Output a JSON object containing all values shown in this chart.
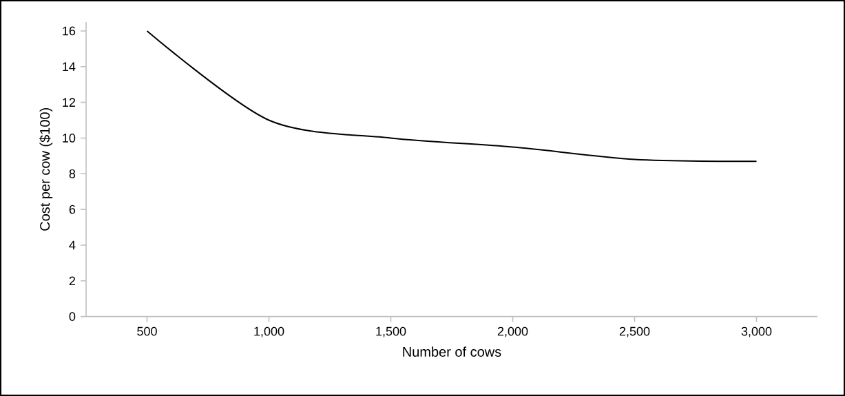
{
  "chart_data": {
    "type": "line",
    "xlabel": "Number of cows",
    "ylabel": "Cost per cow ($100)",
    "x": [
      500,
      1000,
      1500,
      2000,
      2500,
      3000
    ],
    "series": [
      {
        "color": "#000000",
        "values": [
          16,
          11,
          10,
          9.5,
          8.8,
          8.7
        ]
      }
    ],
    "xlim": [
      250,
      3250
    ],
    "ylim": [
      0,
      16.5
    ],
    "xticks": [
      500,
      {
        "value": 1000,
        "label": "1,000"
      },
      {
        "value": 1500,
        "label": "1,500"
      },
      {
        "value": 2000,
        "label": "2,000"
      },
      {
        "value": 2500,
        "label": "2,500"
      },
      {
        "value": 3000,
        "label": "3,000"
      }
    ],
    "yticks": [
      0,
      2,
      4,
      6,
      8,
      10,
      12,
      14,
      16
    ],
    "marker": "none",
    "line_style": "solid"
  }
}
